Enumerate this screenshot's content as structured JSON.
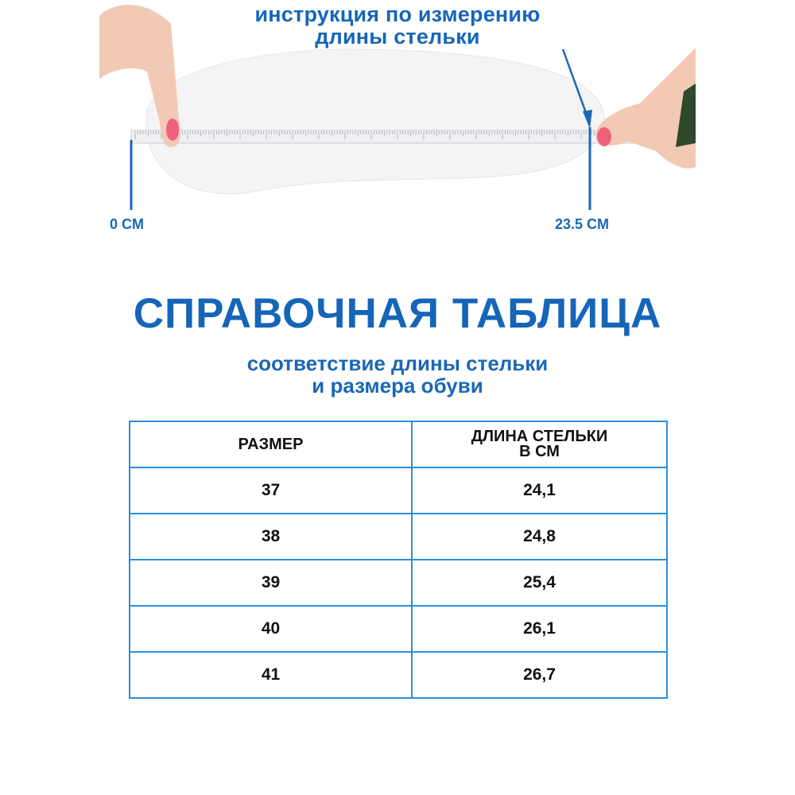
{
  "instruction": {
    "title_line1": "инструкция по измерению",
    "title_line2": "длины стельки",
    "start_label": "0 CM",
    "end_label": "23.5 CM"
  },
  "reference": {
    "title": "СПРАВОЧНАЯ ТАБЛИЦА",
    "subtitle_line1": "соответствие длины стельки",
    "subtitle_line2": "и размера обуви"
  },
  "table": {
    "headers": [
      "РАЗМЕР",
      "ДЛИНА СТЕЛЬКИ",
      "В СМ"
    ],
    "rows": [
      [
        "37",
        "24,1"
      ],
      [
        "38",
        "24,8"
      ],
      [
        "39",
        "25,4"
      ],
      [
        "40",
        "26,1"
      ],
      [
        "41",
        "26,7"
      ]
    ]
  },
  "colors": {
    "accent": "#1565b8",
    "table_border": "#2a8ee0",
    "nail": "#f0607a"
  }
}
